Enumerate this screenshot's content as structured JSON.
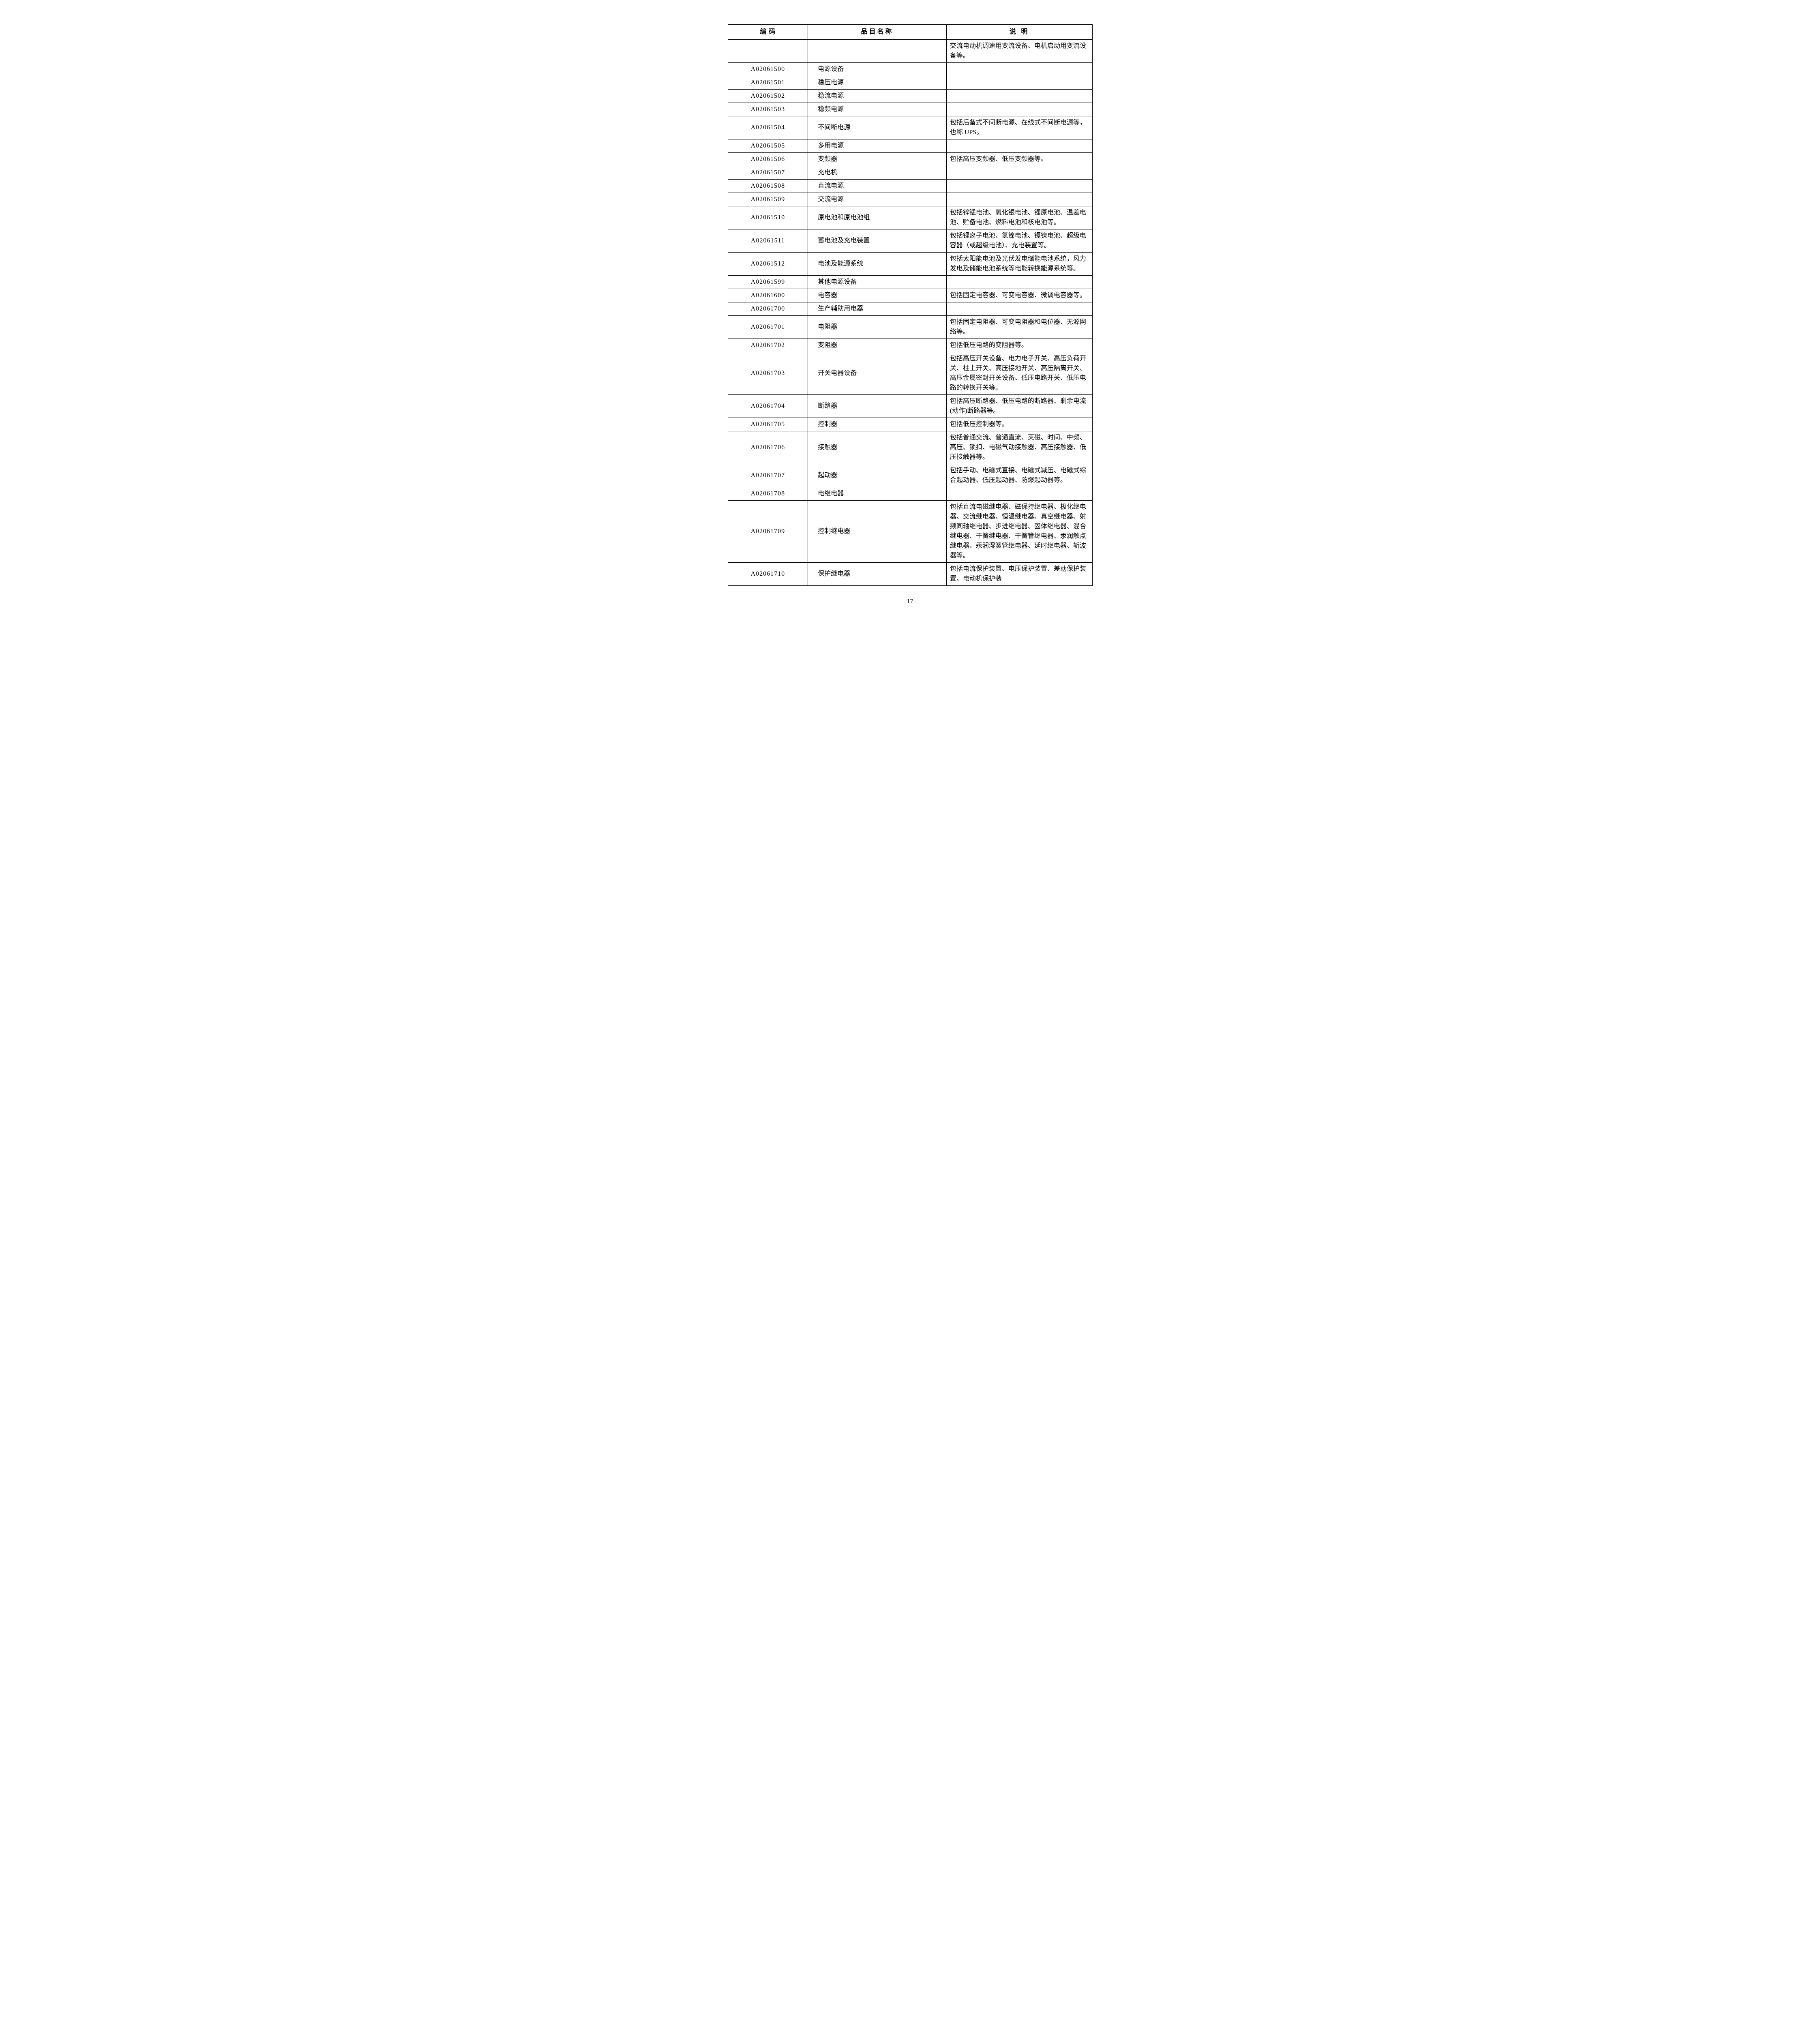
{
  "table": {
    "headers": {
      "code": "编  码",
      "name": "品目名称",
      "desc": "说  明"
    },
    "rows": [
      {
        "code": "",
        "name": "",
        "desc": "交流电动机调速用变流设备、电机启动用变流设备等。"
      },
      {
        "code": "A02061500",
        "name": "电源设备",
        "desc": ""
      },
      {
        "code": "A02061501",
        "name": "稳压电源",
        "desc": ""
      },
      {
        "code": "A02061502",
        "name": "稳流电源",
        "desc": ""
      },
      {
        "code": "A02061503",
        "name": "稳频电源",
        "desc": ""
      },
      {
        "code": "A02061504",
        "name": "不间断电源",
        "desc": "包括后备式不间断电源、在线式不间断电源等，也称 UPS。"
      },
      {
        "code": "A02061505",
        "name": "多用电源",
        "desc": ""
      },
      {
        "code": "A02061506",
        "name": "变频器",
        "desc": "包括高压变频器、低压变频器等。"
      },
      {
        "code": "A02061507",
        "name": "充电机",
        "desc": ""
      },
      {
        "code": "A02061508",
        "name": "直流电源",
        "desc": ""
      },
      {
        "code": "A02061509",
        "name": "交流电源",
        "desc": ""
      },
      {
        "code": "A02061510",
        "name": "原电池和原电池组",
        "desc": "包括锌锰电池、氧化银电池、锂原电池、温差电池、贮备电池、燃料电池和核电池等。"
      },
      {
        "code": "A02061511",
        "name": "蓄电池及充电装置",
        "desc": "包括锂离子电池、氢镍电池、镉镍电池、超级电容器（或超级电池）、充电装置等。"
      },
      {
        "code": "A02061512",
        "name": "电池及能源系统",
        "desc": "包括太阳能电池及光伏发电储能电池系统，风力发电及储能电池系统等电能转换能源系统等。"
      },
      {
        "code": "A02061599",
        "name": "其他电源设备",
        "desc": ""
      },
      {
        "code": "A02061600",
        "name": "电容器",
        "desc": "包括固定电容器、可变电容器、微调电容器等。"
      },
      {
        "code": "A02061700",
        "name": "生产辅助用电器",
        "desc": ""
      },
      {
        "code": "A02061701",
        "name": "电阻器",
        "desc": "包括固定电阻器、可变电阻器和电位器、无源网络等。"
      },
      {
        "code": "A02061702",
        "name": "变阻器",
        "desc": "包括低压电路的变阻器等。"
      },
      {
        "code": "A02061703",
        "name": "开关电器设备",
        "desc": "包括高压开关设备、电力电子开关、高压负荷开关、柱上开关、高压接地开关、高压隔离开关、高压金属密封开关设备、低压电路开关、低压电路的转换开关等。"
      },
      {
        "code": "A02061704",
        "name": "断路器",
        "desc": "包括高压断路器、低压电路的断路器、剩余电流(动作)断路器等。"
      },
      {
        "code": "A02061705",
        "name": "控制器",
        "desc": "包括低压控制器等。"
      },
      {
        "code": "A02061706",
        "name": "接触器",
        "desc": "包括普通交流、普通直流、灭磁、时间、中频、高压、锁扣、电磁气动接触器、高压接触器、低压接触器等。"
      },
      {
        "code": "A02061707",
        "name": "起动器",
        "desc": "包括手动、电磁式直接、电磁式减压、电磁式综合起动器、低压起动器、防爆起动器等。"
      },
      {
        "code": "A02061708",
        "name": "电继电器",
        "desc": ""
      },
      {
        "code": "A02061709",
        "name": "控制继电器",
        "desc": "包括直流电磁继电器、磁保持继电器、极化继电器、交流继电器、恒温继电器、真空继电器、射频同轴继电器、步进继电器、固体继电器、混合继电器、干簧继电器、干簧管继电器、汞润触点继电器、汞润湿簧管继电器、延时继电器、斩波器等。"
      },
      {
        "code": "A02061710",
        "name": "保护继电器",
        "desc": "包括电流保护装置、电压保护装置、差动保护装置、电动机保护装"
      }
    ]
  },
  "pageNumber": "17"
}
